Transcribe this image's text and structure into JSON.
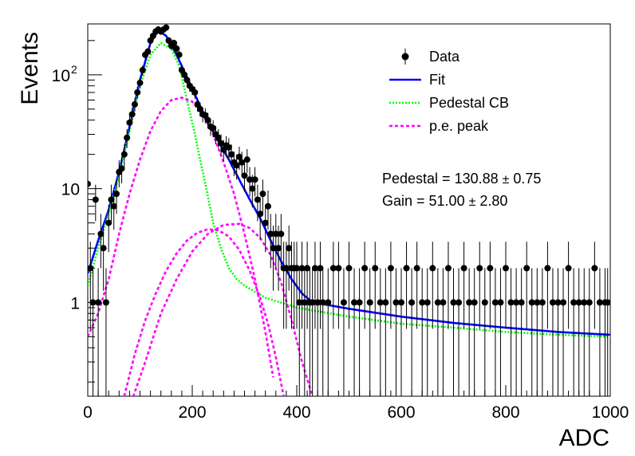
{
  "chart_data": {
    "type": "scatter",
    "xlabel": "ADC",
    "ylabel": "Events",
    "xlim": [
      0,
      1000
    ],
    "ylim": [
      0.15,
      280
    ],
    "yscale": "log",
    "grid": false,
    "legend_position": "top-right",
    "xticks": [
      {
        "value": 0,
        "label": "0"
      },
      {
        "value": 200,
        "label": "200"
      },
      {
        "value": 400,
        "label": "400"
      },
      {
        "value": 600,
        "label": "600"
      },
      {
        "value": 800,
        "label": "800"
      },
      {
        "value": 1000,
        "label": "1000"
      }
    ],
    "yticks": [
      {
        "value": 1,
        "label": "1"
      },
      {
        "value": 10,
        "label": "10"
      },
      {
        "value": 100,
        "label": "10",
        "sup": "2"
      }
    ],
    "legend": [
      {
        "name": "Data",
        "style": "marker",
        "color": "#000000"
      },
      {
        "name": "Fit",
        "style": "solid",
        "color": "#0000ff"
      },
      {
        "name": "Pedestal CB",
        "style": "dotted",
        "color": "#00ff00"
      },
      {
        "name": "p.e. peak",
        "style": "dashed",
        "color": "#ff00ff"
      }
    ],
    "annotations": [
      {
        "text": "Pedestal = 130.88",
        "pm": "±",
        "err": "0.75"
      },
      {
        "text": "Gain = 51.00",
        "pm": "±",
        "err": "2.80"
      }
    ],
    "series": [
      {
        "name": "Data",
        "color": "#000000",
        "points": [
          [
            0,
            11
          ],
          [
            5,
            2
          ],
          [
            10,
            1
          ],
          [
            15,
            8
          ],
          [
            20,
            1
          ],
          [
            25,
            4
          ],
          [
            30,
            3
          ],
          [
            35,
            1
          ],
          [
            40,
            5
          ],
          [
            45,
            8
          ],
          [
            50,
            7
          ],
          [
            55,
            9
          ],
          [
            60,
            14
          ],
          [
            65,
            15
          ],
          [
            70,
            20
          ],
          [
            75,
            28
          ],
          [
            80,
            38
          ],
          [
            85,
            45
          ],
          [
            90,
            55
          ],
          [
            95,
            70
          ],
          [
            100,
            85
          ],
          [
            105,
            110
          ],
          [
            110,
            150
          ],
          [
            115,
            160
          ],
          [
            120,
            200
          ],
          [
            125,
            220
          ],
          [
            130,
            240
          ],
          [
            135,
            250
          ],
          [
            140,
            240
          ],
          [
            145,
            250
          ],
          [
            150,
            260
          ],
          [
            155,
            200
          ],
          [
            160,
            180
          ],
          [
            165,
            190
          ],
          [
            170,
            170
          ],
          [
            175,
            150
          ],
          [
            180,
            110
          ],
          [
            185,
            100
          ],
          [
            190,
            90
          ],
          [
            195,
            80
          ],
          [
            200,
            75
          ],
          [
            205,
            70
          ],
          [
            210,
            55
          ],
          [
            215,
            50
          ],
          [
            220,
            45
          ],
          [
            225,
            44
          ],
          [
            230,
            40
          ],
          [
            235,
            35
          ],
          [
            240,
            34
          ],
          [
            245,
            30
          ],
          [
            250,
            28
          ],
          [
            255,
            25
          ],
          [
            260,
            22
          ],
          [
            265,
            24
          ],
          [
            270,
            23
          ],
          [
            275,
            20
          ],
          [
            280,
            17
          ],
          [
            285,
            16
          ],
          [
            290,
            19
          ],
          [
            295,
            17
          ],
          [
            300,
            13
          ],
          [
            305,
            18
          ],
          [
            310,
            12
          ],
          [
            315,
            10
          ],
          [
            320,
            12
          ],
          [
            325,
            8
          ],
          [
            330,
            6
          ],
          [
            335,
            9
          ],
          [
            340,
            5
          ],
          [
            345,
            7
          ],
          [
            350,
            4
          ],
          [
            355,
            3
          ],
          [
            360,
            4
          ],
          [
            365,
            3
          ],
          [
            370,
            4
          ],
          [
            375,
            2
          ],
          [
            380,
            2
          ],
          [
            385,
            3
          ],
          [
            390,
            2
          ],
          [
            395,
            2
          ],
          [
            400,
            2
          ],
          [
            405,
            1
          ],
          [
            410,
            2
          ],
          [
            415,
            1
          ],
          [
            420,
            2
          ],
          [
            425,
            1
          ],
          [
            430,
            1
          ],
          [
            435,
            2
          ],
          [
            440,
            1
          ],
          [
            445,
            2
          ],
          [
            450,
            1
          ],
          [
            460,
            1
          ],
          [
            470,
            2
          ],
          [
            480,
            2
          ],
          [
            490,
            1
          ],
          [
            500,
            2
          ],
          [
            510,
            1
          ],
          [
            520,
            1
          ],
          [
            530,
            2
          ],
          [
            540,
            1
          ],
          [
            550,
            2
          ],
          [
            560,
            1
          ],
          [
            570,
            1
          ],
          [
            580,
            2
          ],
          [
            590,
            1
          ],
          [
            600,
            1
          ],
          [
            610,
            2
          ],
          [
            620,
            1
          ],
          [
            630,
            2
          ],
          [
            640,
            1
          ],
          [
            650,
            1
          ],
          [
            660,
            2
          ],
          [
            670,
            1
          ],
          [
            680,
            1
          ],
          [
            690,
            2
          ],
          [
            700,
            1
          ],
          [
            710,
            1
          ],
          [
            720,
            2
          ],
          [
            730,
            1
          ],
          [
            740,
            1
          ],
          [
            750,
            2
          ],
          [
            760,
            1
          ],
          [
            770,
            2
          ],
          [
            780,
            1
          ],
          [
            790,
            1
          ],
          [
            800,
            2
          ],
          [
            810,
            1
          ],
          [
            820,
            1
          ],
          [
            830,
            1
          ],
          [
            840,
            2
          ],
          [
            850,
            1
          ],
          [
            860,
            1
          ],
          [
            870,
            1
          ],
          [
            880,
            2
          ],
          [
            890,
            1
          ],
          [
            900,
            1
          ],
          [
            910,
            1
          ],
          [
            920,
            2
          ],
          [
            930,
            1
          ],
          [
            940,
            1
          ],
          [
            950,
            1
          ],
          [
            960,
            1
          ],
          [
            970,
            2
          ],
          [
            980,
            1
          ],
          [
            990,
            1
          ],
          [
            995,
            1
          ]
        ]
      },
      {
        "name": "Fit",
        "color": "#0000ff",
        "points": [
          [
            0,
            1.8
          ],
          [
            20,
            3.5
          ],
          [
            40,
            6.5
          ],
          [
            60,
            14
          ],
          [
            80,
            35
          ],
          [
            100,
            90
          ],
          [
            120,
            190
          ],
          [
            135,
            245
          ],
          [
            150,
            220
          ],
          [
            170,
            150
          ],
          [
            190,
            95
          ],
          [
            210,
            60
          ],
          [
            230,
            38
          ],
          [
            250,
            26
          ],
          [
            270,
            18
          ],
          [
            290,
            12
          ],
          [
            310,
            8
          ],
          [
            330,
            5.5
          ],
          [
            350,
            3.5
          ],
          [
            370,
            2.3
          ],
          [
            390,
            1.6
          ],
          [
            410,
            1.2
          ],
          [
            430,
            1.0
          ],
          [
            460,
            0.95
          ],
          [
            500,
            0.88
          ],
          [
            600,
            0.75
          ],
          [
            700,
            0.66
          ],
          [
            800,
            0.6
          ],
          [
            900,
            0.55
          ],
          [
            1000,
            0.52
          ]
        ]
      },
      {
        "name": "Pedestal CB",
        "color": "#00ff00",
        "points": [
          [
            0,
            1.4
          ],
          [
            20,
            3.0
          ],
          [
            40,
            6
          ],
          [
            60,
            13
          ],
          [
            80,
            32
          ],
          [
            100,
            80
          ],
          [
            120,
            150
          ],
          [
            140,
            190
          ],
          [
            160,
            170
          ],
          [
            175,
            120
          ],
          [
            190,
            60
          ],
          [
            205,
            30
          ],
          [
            215,
            18
          ],
          [
            225,
            11
          ],
          [
            240,
            5
          ],
          [
            255,
            3.0
          ],
          [
            270,
            2.0
          ],
          [
            285,
            1.6
          ],
          [
            300,
            1.4
          ],
          [
            340,
            1.1
          ],
          [
            400,
            0.9
          ],
          [
            500,
            0.75
          ],
          [
            600,
            0.65
          ],
          [
            700,
            0.6
          ],
          [
            800,
            0.55
          ],
          [
            900,
            0.52
          ],
          [
            1000,
            0.5
          ]
        ]
      },
      {
        "name": "p.e. peak",
        "color": "#ff00ff",
        "points": [
          [
            0,
            0.5
          ],
          [
            20,
            0.8
          ],
          [
            40,
            1.6
          ],
          [
            60,
            4
          ],
          [
            80,
            9
          ],
          [
            100,
            18
          ],
          [
            120,
            32
          ],
          [
            140,
            48
          ],
          [
            160,
            60
          ],
          [
            180,
            63
          ],
          [
            200,
            58
          ],
          [
            220,
            45
          ],
          [
            240,
            30
          ],
          [
            260,
            17
          ],
          [
            280,
            9
          ],
          [
            300,
            4
          ],
          [
            320,
            1.6
          ],
          [
            340,
            0.55
          ],
          [
            355,
            0.22
          ]
        ]
      },
      {
        "name": "p.e. peak",
        "color": "#ff00ff",
        "points": [
          [
            70,
            0.15
          ],
          [
            90,
            0.35
          ],
          [
            110,
            0.7
          ],
          [
            130,
            1.2
          ],
          [
            150,
            1.9
          ],
          [
            170,
            2.7
          ],
          [
            190,
            3.5
          ],
          [
            210,
            4.1
          ],
          [
            230,
            4.4
          ],
          [
            250,
            4.3
          ],
          [
            270,
            3.8
          ],
          [
            290,
            2.9
          ],
          [
            310,
            1.9
          ],
          [
            330,
            1.1
          ],
          [
            345,
            0.65
          ],
          [
            360,
            0.33
          ],
          [
            375,
            0.15
          ]
        ]
      },
      {
        "name": "p.e. peak",
        "color": "#ff00ff",
        "points": [
          [
            80,
            0.12
          ],
          [
            110,
            0.3
          ],
          [
            140,
            0.8
          ],
          [
            170,
            1.6
          ],
          [
            200,
            2.8
          ],
          [
            230,
            4.0
          ],
          [
            260,
            4.8
          ],
          [
            290,
            4.9
          ],
          [
            310,
            4.5
          ],
          [
            330,
            3.7
          ],
          [
            350,
            2.6
          ],
          [
            370,
            1.5
          ],
          [
            390,
            0.7
          ],
          [
            410,
            0.3
          ],
          [
            430,
            0.15
          ]
        ]
      }
    ]
  }
}
